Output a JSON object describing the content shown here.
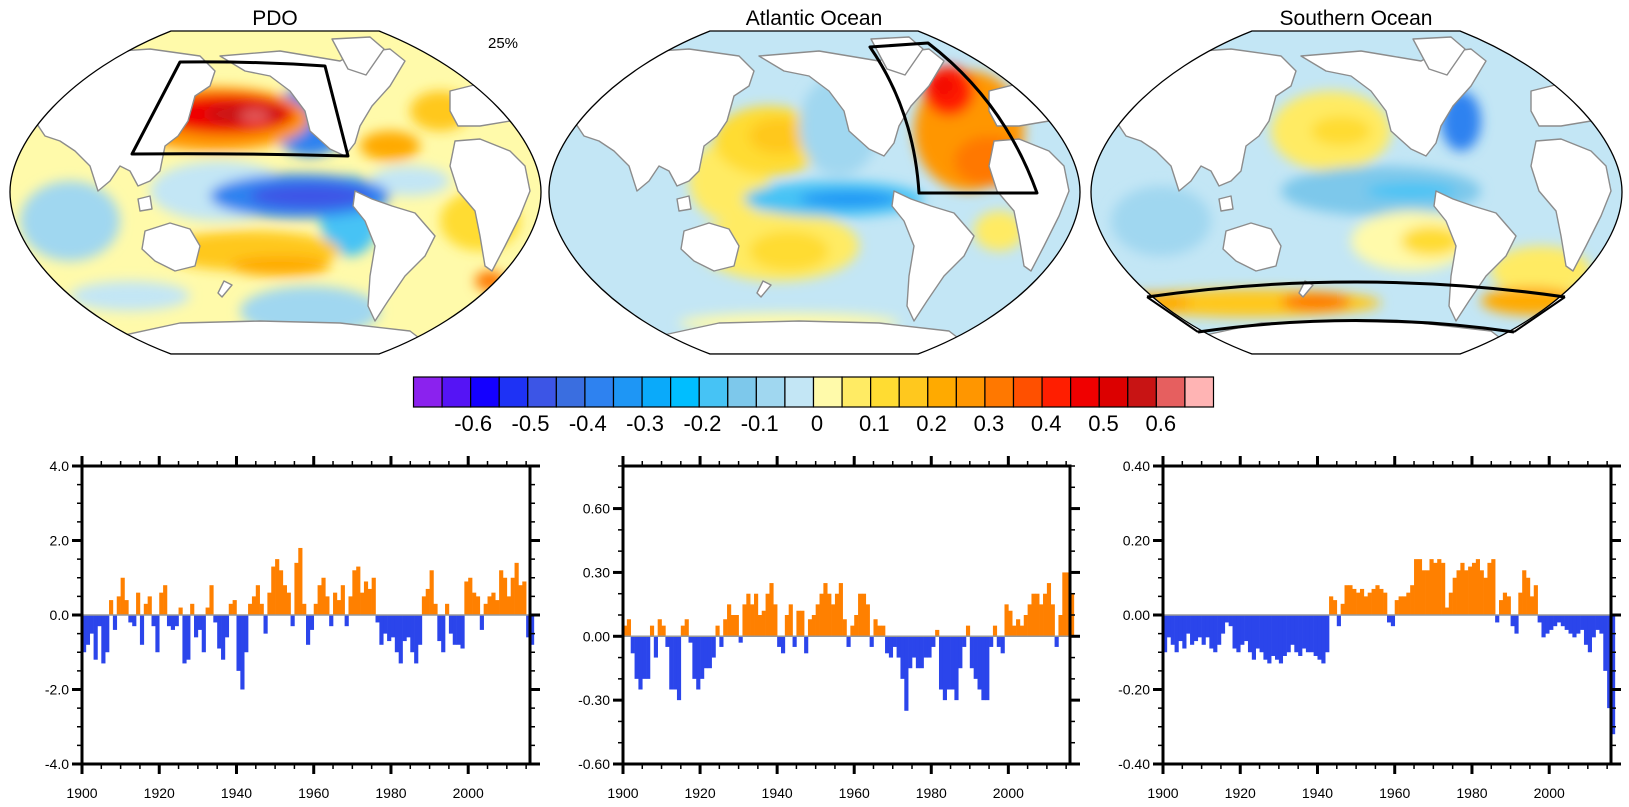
{
  "maps": [
    {
      "title": "PDO",
      "annotation": "25%"
    },
    {
      "title": "Atlantic Ocean"
    },
    {
      "title": "Southern Ocean"
    }
  ],
  "colorbar": {
    "colors": [
      "#8B22EE",
      "#5514F5",
      "#1400FF",
      "#1E32F5",
      "#3C55E6",
      "#3A6EE0",
      "#2E82F0",
      "#1E96F5",
      "#0AAAFA",
      "#00BEFF",
      "#46C3F5",
      "#7DC8EB",
      "#A0D7F0",
      "#C3E6F5",
      "#FFFAAA",
      "#FFEB64",
      "#FFDC32",
      "#FFC81E",
      "#FFAA00",
      "#FF9600",
      "#FF7800",
      "#FF5000",
      "#FF1E00",
      "#F00000",
      "#DC0000",
      "#C81414",
      "#E65F5F",
      "#FFB4B4"
    ],
    "labels": [
      "-0.6",
      "-0.5",
      "-0.4",
      "-0.3",
      "-0.2",
      "-0.1",
      "0",
      "0.1",
      "0.2",
      "0.3",
      "0.4",
      "0.5",
      "0.6"
    ]
  },
  "colors": {
    "positive": "#FF8000",
    "negative": "#2B45EB",
    "zero_line": "#999999",
    "coast": "#8C8C8C"
  },
  "chart_data": [
    {
      "type": "bar",
      "x_start": 1900,
      "x_step": 1,
      "xlim": [
        1900,
        2016
      ],
      "ylim": [
        -4.0,
        4.0
      ],
      "xticks": [
        1900,
        1920,
        1940,
        1960,
        1980,
        2000
      ],
      "xticklabels": [
        "1900",
        "1920",
        "1940",
        "1960",
        "1980",
        "2000"
      ],
      "xminor_step": 5,
      "yticks": [
        -4,
        -2,
        0,
        2,
        4
      ],
      "yticklabels": [
        "-4.0",
        "-2.0",
        "0.0",
        "2.0",
        "4.0"
      ],
      "yminor_step": 0.5,
      "values": [
        -1.0,
        -0.8,
        -0.5,
        -1.2,
        -0.3,
        -1.3,
        -1.0,
        0.4,
        -0.4,
        0.5,
        1.0,
        0.4,
        -0.2,
        -0.3,
        0.6,
        -0.8,
        0.3,
        0.5,
        -0.3,
        -1.0,
        0.6,
        0.8,
        -0.3,
        -0.4,
        -0.3,
        0.2,
        -1.3,
        -1.2,
        0.3,
        -0.6,
        -0.4,
        -1.0,
        0.2,
        0.8,
        -0.2,
        -0.9,
        -1.2,
        -0.6,
        0.3,
        0.4,
        -1.5,
        -2.0,
        -1.0,
        0.3,
        0.5,
        0.8,
        0.3,
        -0.5,
        0.6,
        1.3,
        1.5,
        1.2,
        0.8,
        0.6,
        -0.3,
        1.4,
        1.8,
        0.3,
        -0.8,
        -0.4,
        0.3,
        0.8,
        1.0,
        0.5,
        -0.3,
        0.6,
        0.4,
        0.8,
        -0.3,
        0.5,
        1.2,
        1.3,
        0.6,
        0.9,
        0.7,
        1.0,
        -0.2,
        -0.8,
        -0.5,
        -0.7,
        -0.6,
        -1.0,
        -1.3,
        -0.7,
        -0.6,
        -1.0,
        -1.3,
        -0.8,
        0.5,
        0.7,
        1.2,
        0.3,
        -0.7,
        -1.0,
        0.3,
        -0.5,
        -0.8,
        -0.8,
        -0.9,
        0.9,
        1.0,
        0.6,
        0.5,
        -0.4,
        0.3,
        0.5,
        0.6,
        0.4,
        1.2,
        1.0,
        0.5,
        1.0,
        1.4,
        0.8,
        0.9,
        -0.6,
        -0.8
      ]
    },
    {
      "type": "bar",
      "x_start": 1900,
      "x_step": 1,
      "xlim": [
        1900,
        2016
      ],
      "ylim": [
        -0.6,
        0.8
      ],
      "xticks": [
        1900,
        1920,
        1940,
        1960,
        1980,
        2000
      ],
      "xticklabels": [
        "1900",
        "1920",
        "1940",
        "1960",
        "1980",
        "2000"
      ],
      "xminor_step": 5,
      "yticks": [
        -0.6,
        -0.3,
        0,
        0.3,
        0.6
      ],
      "yticklabels": [
        "-0.60",
        "-0.30",
        "0.00",
        "0.30",
        "0.60"
      ],
      "yminor_step": 0.1,
      "values": [
        0.05,
        0.08,
        -0.08,
        -0.2,
        -0.25,
        -0.2,
        -0.2,
        0.05,
        -0.1,
        0.08,
        0.05,
        -0.05,
        -0.25,
        -0.25,
        -0.3,
        0.05,
        0.08,
        -0.03,
        -0.2,
        -0.25,
        -0.2,
        -0.15,
        -0.15,
        -0.1,
        0.05,
        -0.05,
        0.08,
        0.15,
        0.1,
        0.1,
        -0.03,
        0.15,
        0.2,
        0.15,
        0.2,
        0.1,
        0.12,
        0.2,
        0.25,
        0.15,
        -0.05,
        -0.08,
        0.1,
        0.15,
        -0.05,
        0.12,
        0.12,
        -0.08,
        0.08,
        0.1,
        0.15,
        0.2,
        0.25,
        0.2,
        0.15,
        0.2,
        0.25,
        0.08,
        -0.05,
        0.05,
        0.1,
        0.2,
        0.2,
        0.15,
        -0.05,
        0.08,
        0.05,
        0.05,
        -0.08,
        -0.1,
        -0.05,
        -0.1,
        -0.2,
        -0.35,
        -0.15,
        -0.1,
        -0.15,
        -0.15,
        -0.1,
        -0.1,
        -0.05,
        0.03,
        -0.25,
        -0.3,
        -0.25,
        -0.25,
        -0.3,
        -0.15,
        -0.05,
        0.05,
        -0.15,
        -0.2,
        -0.25,
        -0.3,
        -0.3,
        -0.05,
        0.05,
        -0.05,
        -0.08,
        0.15,
        0.12,
        0.05,
        0.08,
        0.05,
        0.1,
        0.15,
        0.2,
        0.2,
        0.15,
        0.2,
        0.25,
        0.15,
        -0.05,
        0.1,
        0.3,
        0.3,
        0.2
      ]
    },
    {
      "type": "bar",
      "x_start": 1900,
      "x_step": 1,
      "xlim": [
        1900,
        2016
      ],
      "ylim": [
        -0.4,
        0.4
      ],
      "xticks": [
        1900,
        1920,
        1940,
        1960,
        1980,
        2000
      ],
      "xticklabels": [
        "1900",
        "1920",
        "1940",
        "1960",
        "1980",
        "2000"
      ],
      "xminor_step": 5,
      "yticks": [
        -0.4,
        -0.2,
        0,
        0.2,
        0.4
      ],
      "yticklabels": [
        "-0.40",
        "-0.20",
        "0.00",
        "0.20",
        "0.40"
      ],
      "yminor_step": 0.05,
      "values": [
        -0.1,
        -0.06,
        -0.08,
        -0.1,
        -0.07,
        -0.09,
        -0.05,
        -0.08,
        -0.07,
        -0.06,
        -0.08,
        -0.06,
        -0.09,
        -0.1,
        -0.08,
        -0.05,
        -0.02,
        -0.03,
        -0.09,
        -0.1,
        -0.08,
        -0.07,
        -0.1,
        -0.12,
        -0.09,
        -0.1,
        -0.12,
        -0.13,
        -0.11,
        -0.12,
        -0.13,
        -0.11,
        -0.1,
        -0.08,
        -0.1,
        -0.11,
        -0.09,
        -0.1,
        -0.1,
        -0.11,
        -0.12,
        -0.13,
        -0.1,
        0.05,
        0.04,
        -0.03,
        0.03,
        0.08,
        0.08,
        0.07,
        0.06,
        0.07,
        0.05,
        0.06,
        0.07,
        0.08,
        0.07,
        0.06,
        -0.02,
        -0.03,
        0.04,
        0.05,
        0.05,
        0.06,
        0.08,
        0.15,
        0.15,
        0.12,
        0.12,
        0.15,
        0.14,
        0.15,
        0.14,
        0.02,
        0.06,
        0.1,
        0.12,
        0.14,
        0.12,
        0.13,
        0.14,
        0.15,
        0.12,
        0.1,
        0.14,
        0.15,
        -0.02,
        0.04,
        0.06,
        0.05,
        -0.03,
        -0.05,
        0.06,
        0.12,
        0.1,
        0.05,
        0.08,
        -0.02,
        -0.06,
        -0.05,
        -0.04,
        -0.03,
        -0.02,
        -0.03,
        -0.04,
        -0.05,
        -0.06,
        -0.05,
        -0.04,
        -0.08,
        -0.1,
        -0.06,
        -0.04,
        -0.05,
        -0.15,
        -0.25,
        -0.32
      ]
    }
  ]
}
